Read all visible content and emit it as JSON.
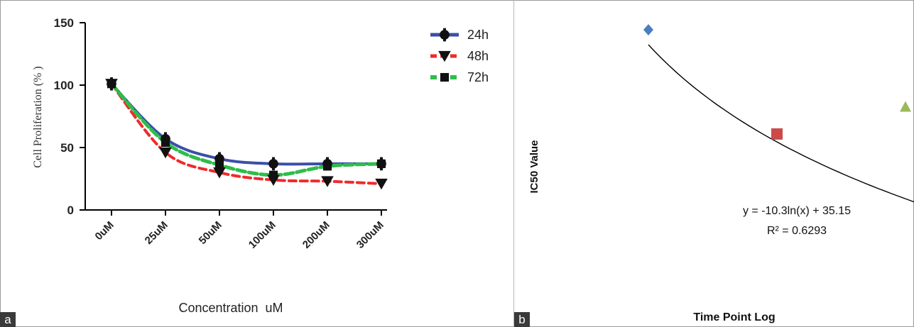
{
  "panel_labels": {
    "a": "a",
    "b": "b"
  },
  "colors": {
    "24h": "#3b4fa8",
    "48h": "#ee2b2b",
    "72h": "#2ebd4a",
    "marker": "#111111",
    "diamond": "#4a7ec0",
    "square": "#cc4a48",
    "triangle": "#9aba58",
    "trend": "#000000"
  },
  "chart_data": [
    {
      "type": "line",
      "title": "",
      "xlabel": "Concentration  uM",
      "ylabel": "Cell Proliferation (% )",
      "categories": [
        "0uM",
        "25uM",
        "50uM",
        "100uM",
        "200uM",
        "300uM"
      ],
      "ylim": [
        0,
        150
      ],
      "yticks": [
        "0",
        "50",
        "100",
        "150"
      ],
      "legend_position": "top-right",
      "series": [
        {
          "name": "24h",
          "marker": "circle",
          "values": [
            101,
            57,
            41,
            37,
            37,
            37
          ]
        },
        {
          "name": "48h",
          "marker": "triangle-down",
          "values": [
            101,
            46,
            30,
            24,
            23,
            21
          ]
        },
        {
          "name": "72h",
          "marker": "square",
          "values": [
            101,
            54,
            36,
            28,
            35,
            37
          ]
        }
      ]
    },
    {
      "type": "scatter",
      "title": "",
      "xlabel": "Time Point Log",
      "ylabel": "IC50 Value",
      "points": [
        {
          "x": 1,
          "y": 35.15,
          "marker": "diamond"
        },
        {
          "x": 2,
          "y": 27.5,
          "marker": "square"
        },
        {
          "x": 3,
          "y": 29.5,
          "marker": "triangle"
        }
      ],
      "trendline": {
        "type": "log",
        "a": -10.3,
        "b": 35.15,
        "x_range": [
          1,
          3.1
        ]
      },
      "equation": "y = -10.3ln(x) + 35.15",
      "r_squared": "R² = 0.6293"
    }
  ]
}
